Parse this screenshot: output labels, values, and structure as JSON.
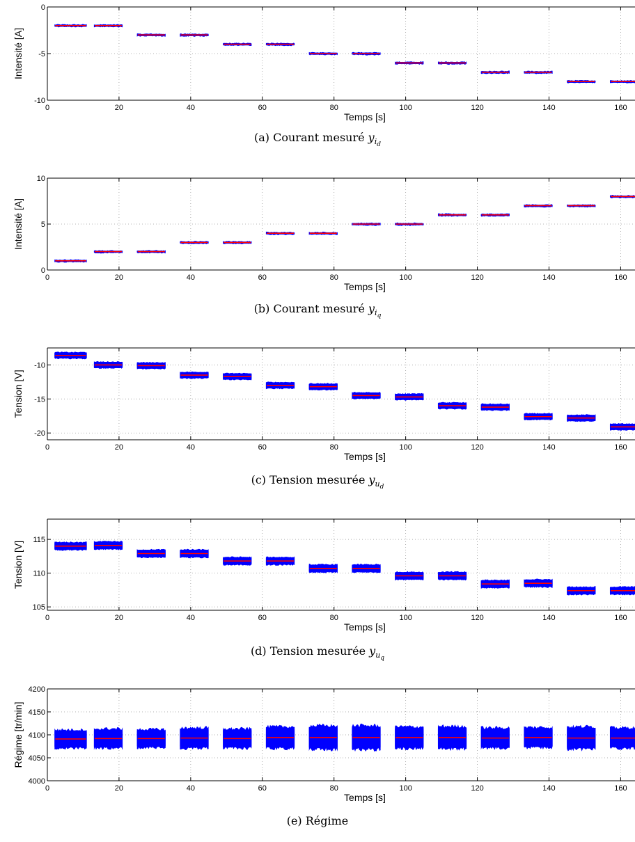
{
  "chart_data": [
    {
      "type": "scatter",
      "caption_prefix": "(a) Courant mesuré ",
      "caption_var": "y",
      "caption_sub": "i",
      "caption_subsub": "d",
      "xlabel": "Temps [s]",
      "ylabel": "Intensité [A]",
      "xlim": [
        0,
        164
      ],
      "ylim": [
        -10,
        0
      ],
      "xticks": [
        0,
        20,
        40,
        60,
        80,
        100,
        120,
        140,
        160
      ],
      "yticks": [
        -10,
        -5,
        0
      ],
      "grid": true,
      "segments_t": [
        [
          2,
          11
        ],
        [
          13,
          21
        ],
        [
          25,
          33
        ],
        [
          37,
          45
        ],
        [
          49,
          57
        ],
        [
          61,
          69
        ],
        [
          73,
          81
        ],
        [
          85,
          93
        ],
        [
          97,
          105
        ],
        [
          109,
          117
        ],
        [
          121,
          129
        ],
        [
          133,
          141
        ],
        [
          145,
          153
        ],
        [
          157,
          165
        ]
      ],
      "series": [
        {
          "color": "#0000ff",
          "mean": [
            -2,
            -2,
            -3,
            -3,
            -4,
            -4,
            -5,
            -5,
            -6,
            -6,
            -7,
            -7,
            -8,
            -8
          ],
          "spread": [
            0.2,
            0.2,
            0.2,
            0.2,
            0.2,
            0.2,
            0.2,
            0.2,
            0.2,
            0.2,
            0.2,
            0.2,
            0.2,
            0.2
          ]
        },
        {
          "color": "#ff0000",
          "mean": [
            -2,
            -2,
            -3,
            -3,
            -4,
            -4,
            -5,
            -5,
            -6,
            -6,
            -7,
            -7,
            -8,
            -8
          ]
        }
      ]
    },
    {
      "type": "scatter",
      "caption_prefix": "(b) Courant mesuré ",
      "caption_var": "y",
      "caption_sub": "i",
      "caption_subsub": "q",
      "xlabel": "Temps [s]",
      "ylabel": "Intensité [A]",
      "xlim": [
        0,
        164
      ],
      "ylim": [
        0,
        10
      ],
      "xticks": [
        0,
        20,
        40,
        60,
        80,
        100,
        120,
        140,
        160
      ],
      "yticks": [
        0,
        5,
        10
      ],
      "grid": true,
      "segments_t": [
        [
          2,
          11
        ],
        [
          13,
          21
        ],
        [
          25,
          33
        ],
        [
          37,
          45
        ],
        [
          49,
          57
        ],
        [
          61,
          69
        ],
        [
          73,
          81
        ],
        [
          85,
          93
        ],
        [
          97,
          105
        ],
        [
          109,
          117
        ],
        [
          121,
          129
        ],
        [
          133,
          141
        ],
        [
          145,
          153
        ],
        [
          157,
          165
        ]
      ],
      "series": [
        {
          "color": "#0000ff",
          "mean": [
            1,
            2,
            2,
            3,
            3,
            4,
            4,
            5,
            5,
            6,
            6,
            7,
            7,
            8
          ],
          "spread": [
            0.2,
            0.2,
            0.2,
            0.2,
            0.2,
            0.2,
            0.2,
            0.2,
            0.2,
            0.2,
            0.2,
            0.2,
            0.2,
            0.2
          ]
        },
        {
          "color": "#ff0000",
          "mean": [
            1,
            2,
            2,
            3,
            3,
            4,
            4,
            5,
            5,
            6,
            6,
            7,
            7,
            8
          ]
        }
      ]
    },
    {
      "type": "scatter",
      "caption_prefix": "(c) Tension mesurée ",
      "caption_var": "y",
      "caption_sub": "u",
      "caption_subsub": "d",
      "xlabel": "Temps [s]",
      "ylabel": "Tension [V]",
      "xlim": [
        0,
        164
      ],
      "ylim": [
        -21,
        -7.5
      ],
      "xticks": [
        0,
        20,
        40,
        60,
        80,
        100,
        120,
        140,
        160
      ],
      "yticks": [
        -20,
        -15,
        -10
      ],
      "grid": true,
      "segments_t": [
        [
          2,
          11
        ],
        [
          13,
          21
        ],
        [
          25,
          33
        ],
        [
          37,
          45
        ],
        [
          49,
          57
        ],
        [
          61,
          69
        ],
        [
          73,
          81
        ],
        [
          85,
          93
        ],
        [
          97,
          105
        ],
        [
          109,
          117
        ],
        [
          121,
          129
        ],
        [
          133,
          141
        ],
        [
          145,
          153
        ],
        [
          157,
          165
        ]
      ],
      "series": [
        {
          "color": "#0000ff",
          "mean": [
            -8.6,
            -10.0,
            -10.1,
            -11.5,
            -11.7,
            -13.0,
            -13.2,
            -14.5,
            -14.7,
            -16.0,
            -16.2,
            -17.6,
            -17.8,
            -19.1
          ],
          "spread": [
            0.9,
            0.9,
            0.9,
            0.9,
            0.9,
            0.9,
            0.9,
            0.9,
            0.9,
            0.9,
            0.9,
            0.9,
            0.9,
            0.9
          ]
        },
        {
          "color": "#ff0000",
          "mean": [
            -8.6,
            -10.0,
            -10.1,
            -11.5,
            -11.7,
            -13.0,
            -13.2,
            -14.5,
            -14.7,
            -16.0,
            -16.2,
            -17.6,
            -17.8,
            -19.1
          ]
        }
      ]
    },
    {
      "type": "scatter",
      "caption_prefix": "(d) Tension mesurée ",
      "caption_var": "y",
      "caption_sub": "u",
      "caption_subsub": "q",
      "xlabel": "Temps [s]",
      "ylabel": "Tension [V]",
      "xlim": [
        0,
        164
      ],
      "ylim": [
        104.5,
        118
      ],
      "xticks": [
        0,
        20,
        40,
        60,
        80,
        100,
        120,
        140,
        160
      ],
      "yticks": [
        105,
        110,
        115
      ],
      "grid": true,
      "segments_t": [
        [
          2,
          11
        ],
        [
          13,
          21
        ],
        [
          25,
          33
        ],
        [
          37,
          45
        ],
        [
          49,
          57
        ],
        [
          61,
          69
        ],
        [
          73,
          81
        ],
        [
          85,
          93
        ],
        [
          97,
          105
        ],
        [
          109,
          117
        ],
        [
          121,
          129
        ],
        [
          133,
          141
        ],
        [
          145,
          153
        ],
        [
          157,
          165
        ]
      ],
      "series": [
        {
          "color": "#0000ff",
          "mean": [
            114.0,
            114.1,
            112.9,
            112.9,
            111.8,
            111.8,
            110.7,
            110.7,
            109.6,
            109.6,
            108.4,
            108.5,
            107.4,
            107.4
          ],
          "spread": [
            1.1,
            1.1,
            1.1,
            1.1,
            1.1,
            1.1,
            1.1,
            1.1,
            1.1,
            1.1,
            1.1,
            1.1,
            1.1,
            1.1
          ]
        },
        {
          "color": "#ff0000",
          "mean": [
            114.0,
            114.1,
            112.9,
            112.9,
            111.8,
            111.8,
            110.7,
            110.7,
            109.6,
            109.6,
            108.4,
            108.5,
            107.4,
            107.4
          ]
        }
      ]
    },
    {
      "type": "scatter",
      "caption_prefix": "(e) Régime",
      "caption_var": "",
      "caption_sub": "",
      "caption_subsub": "",
      "xlabel": "Temps [s]",
      "ylabel": "Régime [tr/min]",
      "xlim": [
        0,
        164
      ],
      "ylim": [
        4000,
        4200
      ],
      "xticks": [
        0,
        20,
        40,
        60,
        80,
        100,
        120,
        140,
        160
      ],
      "yticks": [
        4000,
        4050,
        4100,
        4150,
        4200
      ],
      "grid": true,
      "segments_t": [
        [
          2,
          11
        ],
        [
          13,
          21
        ],
        [
          25,
          33
        ],
        [
          37,
          45
        ],
        [
          49,
          57
        ],
        [
          61,
          69
        ],
        [
          73,
          81
        ],
        [
          85,
          93
        ],
        [
          97,
          105
        ],
        [
          109,
          117
        ],
        [
          121,
          129
        ],
        [
          133,
          141
        ],
        [
          145,
          153
        ],
        [
          157,
          165
        ]
      ],
      "series": [
        {
          "color": "#0000ff",
          "mean": [
            4091,
            4092,
            4092,
            4093,
            4092,
            4094,
            4094,
            4094,
            4094,
            4094,
            4093,
            4094,
            4093,
            4093
          ],
          "spread": [
            36,
            38,
            36,
            40,
            38,
            42,
            46,
            46,
            42,
            44,
            40,
            40,
            44,
            40
          ]
        },
        {
          "color": "#ff0000",
          "mean": [
            4091,
            4092,
            4092,
            4093,
            4092,
            4094,
            4094,
            4094,
            4094,
            4094,
            4093,
            4094,
            4093,
            4093
          ]
        }
      ]
    }
  ]
}
